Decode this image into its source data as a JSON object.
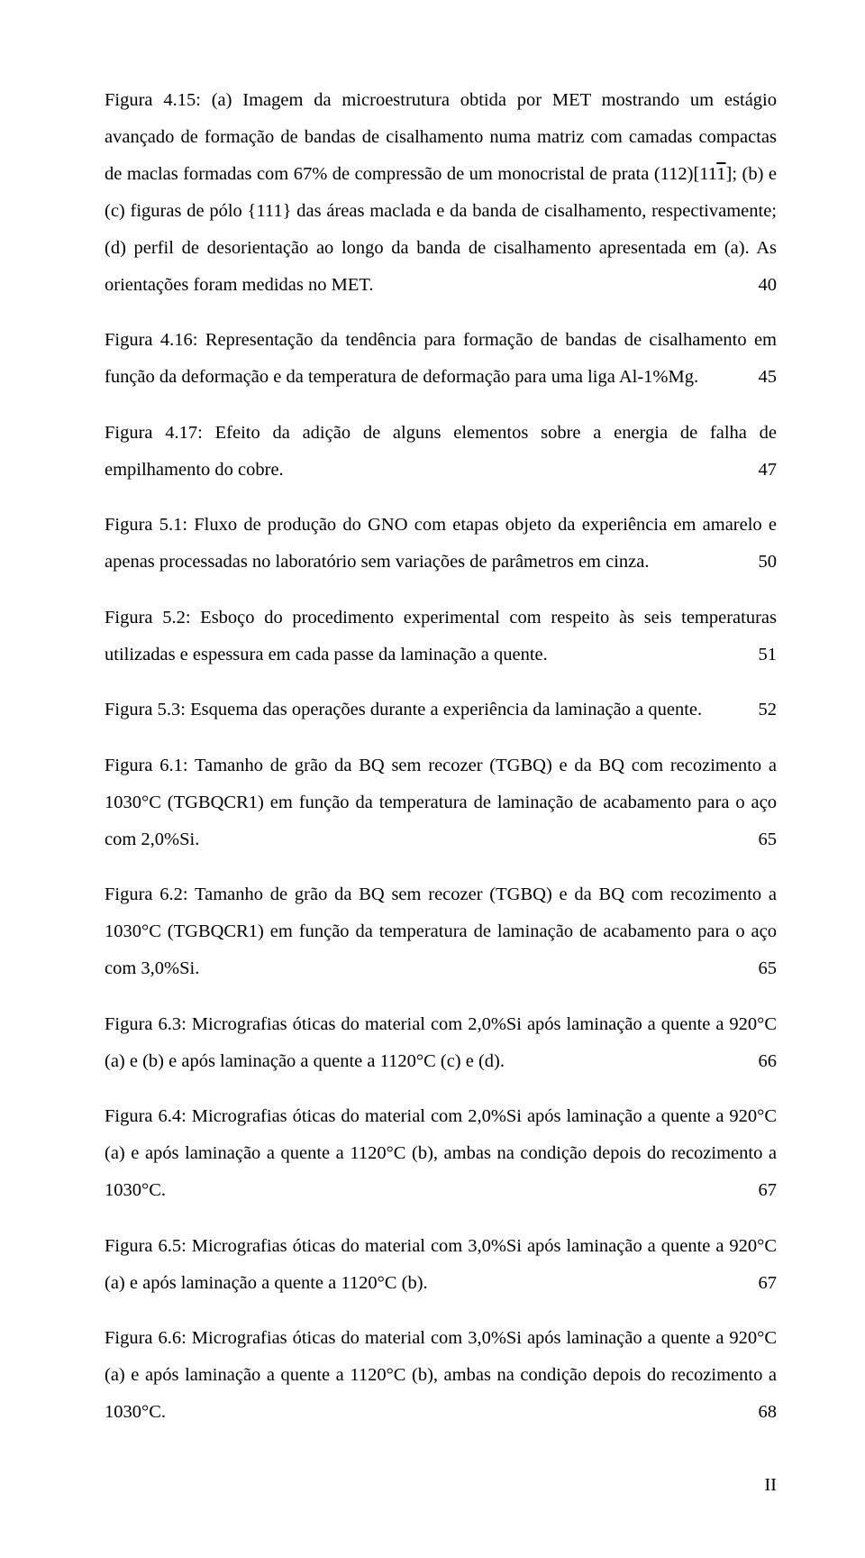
{
  "text_color": "#000000",
  "background_color": "#ffffff",
  "font_family": "Times New Roman",
  "base_font_size_pt": 15.5,
  "line_height": 2,
  "page_number": "II",
  "entries": [
    {
      "label": "Figura 4.15:",
      "text_before": " (a) Imagem da microestrutura obtida por MET mostrando um estágio avançado de formação de bandas de cisalhamento numa matriz com camadas compactas de maclas formadas com 67% de compressão de um monocristal de prata (112)[11",
      "text_overline": "1",
      "text_after": "]; (b) e (c) figuras de pólo {111} das áreas maclada e da banda de cisalhamento, respectivamente; (d) perfil de desorientação ao longo da banda de cisalhamento apresentada em (a). As orientações foram medidas no MET.",
      "page": "40"
    },
    {
      "label": "Figura 4.16:",
      "text": " Representação da tendência para formação de bandas de cisalhamento em função da deformação e da temperatura de deformação para uma liga Al-1%Mg.",
      "page": "45"
    },
    {
      "label": "Figura 4.17:",
      "text": " Efeito da adição de alguns elementos sobre a energia de falha de empilhamento do cobre.",
      "page": "47"
    },
    {
      "label": "Figura 5.1:",
      "text": " Fluxo de produção do GNO com etapas objeto da experiência em amarelo e apenas processadas no laboratório sem variações de parâmetros em cinza.",
      "page": "50"
    },
    {
      "label": "Figura 5.2:",
      "text": " Esboço do procedimento experimental com respeito às seis temperaturas utilizadas e espessura em cada passe da laminação a quente.",
      "page": "51"
    },
    {
      "label": "Figura 5.3:",
      "text": " Esquema das operações durante a experiência da laminação a quente.",
      "page": "52"
    },
    {
      "label": "Figura 6.1:",
      "text": " Tamanho de grão da BQ sem recozer (TGBQ) e da BQ com recozimento a 1030°C (TGBQCR1) em função da temperatura de laminação de acabamento para o aço com 2,0%Si.",
      "page": "65"
    },
    {
      "label": "Figura 6.2:",
      "text": " Tamanho de grão da BQ sem recozer (TGBQ) e da BQ com recozimento a 1030°C (TGBQCR1) em função da temperatura de laminação de acabamento para o aço com 3,0%Si.",
      "page": "65"
    },
    {
      "label": "Figura 6.3:",
      "text": " Micrografias óticas do material com 2,0%Si após laminação a quente a 920°C (a) e (b) e após laminação a quente a 1120°C (c) e (d).",
      "page": "66"
    },
    {
      "label": "Figura 6.4:",
      "text": " Micrografias óticas do material com 2,0%Si após laminação a quente a 920°C (a) e após laminação a quente a 1120°C (b), ambas na condição depois do recozimento a 1030°C.",
      "page": "67"
    },
    {
      "label": "Figura 6.5:",
      "text": " Micrografias óticas do material com 3,0%Si após laminação a quente a 920°C (a) e após laminação a quente a 1120°C (b).",
      "page": "67"
    },
    {
      "label": "Figura 6.6:",
      "text": " Micrografias óticas do material com 3,0%Si após laminação a quente a 920°C (a) e após laminação a quente a 1120°C (b), ambas na condição depois do recozimento a 1030°C.",
      "page": "68"
    }
  ]
}
